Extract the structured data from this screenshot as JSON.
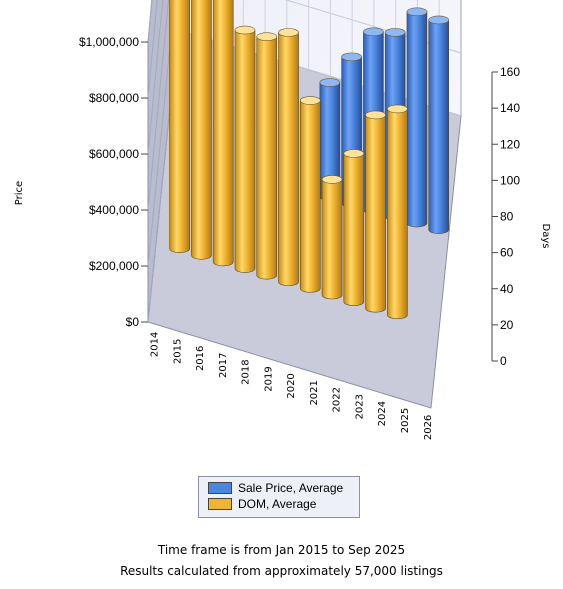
{
  "chart_data": {
    "type": "bar",
    "title": "",
    "categories": [
      "2014",
      "2015",
      "2016",
      "2017",
      "2018",
      "2019",
      "2020",
      "2021",
      "2022",
      "2023",
      "2024",
      "2025",
      "2026"
    ],
    "y_left": {
      "label": "Price",
      "ylim": [
        0,
        1000000
      ],
      "ticks": [
        "$0",
        "$200,000",
        "$400,000",
        "$600,000",
        "$800,000",
        "$1,000,000"
      ]
    },
    "y_right": {
      "label": "Days",
      "ylim": [
        0,
        160
      ],
      "ticks": [
        "0",
        "20",
        "40",
        "60",
        "80",
        "100",
        "120",
        "140",
        "160"
      ]
    },
    "series": [
      {
        "name": "Sale Price, Average",
        "axis": "left",
        "color": "#4a86e0",
        "values": [
          null,
          null,
          null,
          null,
          null,
          null,
          null,
          378000,
          485000,
          590000,
          610000,
          700000,
          695000
        ]
      },
      {
        "name": "DOM, Average",
        "axis": "right",
        "color": "#f0b433",
        "values": [
          null,
          158,
          152,
          149,
          132,
          132,
          138,
          104,
          64,
          82,
          107,
          114,
          null
        ]
      }
    ],
    "grid": true,
    "legend_position": "bottom"
  },
  "footer": {
    "line1": "Time frame is from Jan 2015 to Sep 2025",
    "line2": "Results calculated from approximately 57,000 listings"
  }
}
